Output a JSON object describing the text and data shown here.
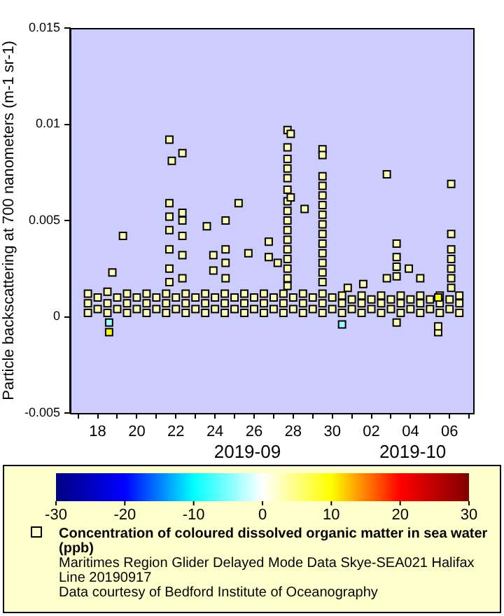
{
  "chart_data": {
    "type": "scatter",
    "title": "Maritimes Region Glider Delayed Mode Data Skye-SEA021 Halifax Line 20190917",
    "ylabel": "Particle backscattering at 700 nanometers (m-1 sr-1)",
    "clabel": "Concentration of coloured dissolved organic matter in sea water (ppb)",
    "annotations": [
      "2019-09",
      "2019-10",
      "Data courtesy of Bedford Institute of Oceanography"
    ],
    "xlim": [
      "2019-09-16T14:00",
      "2019-10-07T05:00"
    ],
    "xticks": [
      {
        "value": "2019-09-17",
        "label": null
      },
      {
        "value": "2019-09-18",
        "label": "18"
      },
      {
        "value": "2019-09-19",
        "label": null
      },
      {
        "value": "2019-09-20",
        "label": "20"
      },
      {
        "value": "2019-09-21",
        "label": null
      },
      {
        "value": "2019-09-22",
        "label": "22"
      },
      {
        "value": "2019-09-23",
        "label": null
      },
      {
        "value": "2019-09-24",
        "label": "24"
      },
      {
        "value": "2019-09-25",
        "label": null
      },
      {
        "value": "2019-09-26",
        "label": "26"
      },
      {
        "value": "2019-09-27",
        "label": null
      },
      {
        "value": "2019-09-28",
        "label": "28"
      },
      {
        "value": "2019-09-29",
        "label": null
      },
      {
        "value": "2019-09-30",
        "label": "30"
      },
      {
        "value": "2019-10-01",
        "label": null
      },
      {
        "value": "2019-10-02",
        "label": "02"
      },
      {
        "value": "2019-10-03",
        "label": null
      },
      {
        "value": "2019-10-04",
        "label": "04"
      },
      {
        "value": "2019-10-05",
        "label": null
      },
      {
        "value": "2019-10-06",
        "label": "06"
      },
      {
        "value": "2019-10-07",
        "label": null
      }
    ],
    "ylim": [
      -0.005,
      0.015
    ],
    "yticks": [
      -0.005,
      0,
      0.005,
      0.01,
      0.015
    ],
    "clim": [
      -30,
      30
    ],
    "cticks": [
      -30,
      -20,
      -10,
      0,
      10,
      20,
      30
    ],
    "marker": "square",
    "x": [
      "2019-09-17T12:00",
      "2019-09-17T12:00",
      "2019-09-17T12:00",
      "2019-09-18T12:00",
      "2019-09-18T12:00",
      "2019-09-18T12:00",
      "2019-09-19T12:00",
      "2019-09-19T12:00",
      "2019-09-19T12:00",
      "2019-09-20T12:00",
      "2019-09-20T12:00",
      "2019-09-20T12:00",
      "2019-09-21T12:00",
      "2019-09-21T12:00",
      "2019-09-21T12:00",
      "2019-09-22T12:00",
      "2019-09-22T12:00",
      "2019-09-22T12:00",
      "2019-09-23T12:00",
      "2019-09-23T12:00",
      "2019-09-23T12:00",
      "2019-09-24T12:00",
      "2019-09-24T12:00",
      "2019-09-24T12:00",
      "2019-09-25T12:00",
      "2019-09-25T12:00",
      "2019-09-25T12:00",
      "2019-09-26T12:00",
      "2019-09-26T12:00",
      "2019-09-26T12:00",
      "2019-09-27T12:00",
      "2019-09-27T12:00",
      "2019-09-27T12:00",
      "2019-09-28T12:00",
      "2019-09-28T12:00",
      "2019-09-28T12:00",
      "2019-09-29T12:00",
      "2019-09-29T12:00",
      "2019-09-29T12:00",
      "2019-09-30T12:00",
      "2019-09-30T12:00",
      "2019-09-30T12:00",
      "2019-10-01T12:00",
      "2019-10-01T12:00",
      "2019-10-01T12:00",
      "2019-10-02T12:00",
      "2019-10-02T12:00",
      "2019-10-02T12:00",
      "2019-10-03T12:00",
      "2019-10-03T12:00",
      "2019-10-03T12:00",
      "2019-10-04T12:00",
      "2019-10-04T12:00",
      "2019-10-04T12:00",
      "2019-10-05T12:00",
      "2019-10-05T12:00",
      "2019-10-05T12:00",
      "2019-10-06T12:00",
      "2019-10-06T12:00",
      "2019-10-06T12:00",
      "2019-09-18T00:00",
      "2019-09-18T00:00",
      "2019-09-19T00:00",
      "2019-09-19T00:00",
      "2019-09-20T00:00",
      "2019-09-20T00:00",
      "2019-09-21T00:00",
      "2019-09-21T00:00",
      "2019-09-22T00:00",
      "2019-09-22T00:00",
      "2019-09-23T00:00",
      "2019-09-23T00:00",
      "2019-09-24T00:00",
      "2019-09-24T00:00",
      "2019-09-25T00:00",
      "2019-09-25T00:00",
      "2019-09-26T00:00",
      "2019-09-26T00:00",
      "2019-09-27T00:00",
      "2019-09-27T00:00",
      "2019-09-28T00:00",
      "2019-09-28T00:00",
      "2019-09-29T00:00",
      "2019-09-29T00:00",
      "2019-09-30T00:00",
      "2019-09-30T00:00",
      "2019-10-01T00:00",
      "2019-10-01T00:00",
      "2019-10-02T00:00",
      "2019-10-02T00:00",
      "2019-10-03T00:00",
      "2019-10-03T00:00",
      "2019-10-04T00:00",
      "2019-10-04T00:00",
      "2019-10-05T00:00",
      "2019-10-05T00:00",
      "2019-10-06T00:00",
      "2019-10-06T00:00",
      "2019-09-21T16:00",
      "2019-09-21T19:00",
      "2019-09-21T16:00",
      "2019-09-21T16:00",
      "2019-09-21T16:00",
      "2019-09-21T16:00",
      "2019-09-21T16:00",
      "2019-09-21T16:00",
      "2019-09-22T08:00",
      "2019-09-22T08:00",
      "2019-09-22T08:00",
      "2019-09-22T08:00",
      "2019-09-22T08:00",
      "2019-09-22T08:00",
      "2019-09-19T07:00",
      "2019-09-18T18:00",
      "2019-09-18T14:00",
      "2019-09-18T14:00",
      "2019-09-23T14:00",
      "2019-09-23T22:00",
      "2019-09-23T22:00",
      "2019-09-24T13:00",
      "2019-09-24T13:00",
      "2019-09-24T13:00",
      "2019-09-24T13:00",
      "2019-09-25T05:00",
      "2019-09-25T17:00",
      "2019-09-26T18:00",
      "2019-09-26T18:00",
      "2019-09-27T05:00",
      "2019-09-27T17:00",
      "2019-09-27T17:00",
      "2019-09-27T17:00",
      "2019-09-27T17:00",
      "2019-09-27T17:00",
      "2019-09-27T17:00",
      "2019-09-27T17:00",
      "2019-09-27T17:00",
      "2019-09-27T17:00",
      "2019-09-27T17:00",
      "2019-09-27T17:00",
      "2019-09-27T17:00",
      "2019-09-27T17:00",
      "2019-09-27T17:00",
      "2019-09-27T17:00",
      "2019-09-27T17:00",
      "2019-09-27T21:00",
      "2019-09-27T21:00",
      "2019-09-28T14:00",
      "2019-09-29T12:00",
      "2019-09-29T12:00",
      "2019-09-29T12:00",
      "2019-09-29T12:00",
      "2019-09-29T12:00",
      "2019-09-29T12:00",
      "2019-09-29T12:00",
      "2019-09-29T12:00",
      "2019-09-29T12:00",
      "2019-09-29T12:00",
      "2019-09-29T12:00",
      "2019-09-29T12:00",
      "2019-09-29T12:00",
      "2019-09-29T12:00",
      "2019-09-30T12:00",
      "2019-09-30T19:00",
      "2019-10-01T14:00",
      "2019-10-02T19:00",
      "2019-10-02T19:00",
      "2019-10-03T07:00",
      "2019-10-03T07:00",
      "2019-10-03T07:00",
      "2019-10-03T07:00",
      "2019-10-03T07:00",
      "2019-10-03T22:00",
      "2019-10-04T12:00",
      "2019-10-05T10:00",
      "2019-10-05T10:00",
      "2019-10-05T10:00",
      "2019-10-06T02:00",
      "2019-10-06T02:00",
      "2019-10-06T02:00",
      "2019-10-06T02:00",
      "2019-10-06T02:00",
      "2019-10-06T02:00",
      "2019-10-06T02:00"
    ],
    "values": [
      0.0002,
      0.0007,
      0.0012,
      0.0002,
      0.0007,
      0.0013,
      0.0002,
      0.0007,
      0.0012,
      0.0002,
      0.0007,
      0.0012,
      0.0002,
      0.0007,
      0.0012,
      0.0002,
      0.0007,
      0.0012,
      0.0002,
      0.0007,
      0.0012,
      0.0002,
      0.0007,
      0.0012,
      0.0002,
      0.0007,
      0.0012,
      0.0002,
      0.0007,
      0.0012,
      0.0002,
      0.0007,
      0.0012,
      0.0002,
      0.0007,
      0.0012,
      0.0002,
      0.0007,
      0.0012,
      0.0002,
      0.0007,
      0.0011,
      0.0002,
      0.0007,
      0.0011,
      0.0002,
      0.0007,
      0.0011,
      0.0002,
      0.0007,
      0.0011,
      0.0002,
      0.0007,
      0.0011,
      0.0002,
      0.0007,
      0.0011,
      0.0002,
      0.0007,
      0.0011,
      0.0004,
      0.001,
      0.0004,
      0.001,
      0.0004,
      0.001,
      0.0004,
      0.001,
      0.0004,
      0.001,
      0.0004,
      0.001,
      0.0004,
      0.001,
      0.0004,
      0.001,
      0.0004,
      0.001,
      0.0004,
      0.001,
      0.0004,
      0.001,
      0.0004,
      0.001,
      0.0004,
      0.001,
      0.0004,
      0.0009,
      0.0004,
      0.0009,
      0.0004,
      0.0009,
      0.0004,
      0.0009,
      0.0004,
      0.0009,
      0.0004,
      0.0009,
      0.0092,
      0.0081,
      0.0059,
      0.0052,
      0.0045,
      0.0035,
      0.0025,
      0.0018,
      0.0085,
      0.0054,
      0.005,
      0.0042,
      0.0032,
      0.002,
      0.0042,
      0.0023,
      -0.0003,
      -0.0008,
      0.0047,
      0.0032,
      0.0024,
      0.005,
      0.0035,
      0.0028,
      0.002,
      0.0059,
      0.0033,
      0.0039,
      0.0031,
      0.0028,
      0.0097,
      0.0088,
      0.0082,
      0.0077,
      0.0072,
      0.0066,
      0.006,
      0.0055,
      0.005,
      0.0045,
      0.004,
      0.0035,
      0.003,
      0.0025,
      0.002,
      0.0016,
      0.0095,
      0.0062,
      0.0056,
      0.0087,
      0.0084,
      0.0073,
      0.0068,
      0.0063,
      0.0058,
      0.0053,
      0.0048,
      0.0043,
      0.0038,
      0.0033,
      0.0028,
      0.0023,
      0.0018,
      -0.0004,
      0.0015,
      0.0017,
      0.0074,
      0.002,
      0.0038,
      0.0031,
      0.0026,
      0.0021,
      -0.0003,
      0.0025,
      0.002,
      -0.0008,
      -0.0005,
      0.001,
      0.0069,
      0.0043,
      0.0035,
      0.003,
      0.0025,
      0.002,
      0.0015
    ],
    "cvalues": [
      3,
      3,
      3,
      3,
      3,
      3,
      3,
      3,
      3,
      3,
      3,
      3,
      3,
      3,
      3,
      3,
      3,
      3,
      3,
      3,
      3,
      3,
      3,
      3,
      3,
      3,
      3,
      3,
      3,
      3,
      3,
      3,
      3,
      3,
      3,
      3,
      3,
      3,
      3,
      3,
      3,
      3,
      3,
      3,
      3,
      3,
      3,
      3,
      3,
      3,
      3,
      3,
      3,
      3,
      3,
      3,
      3,
      3,
      3,
      3,
      3,
      3,
      3,
      3,
      3,
      3,
      3,
      3,
      3,
      3,
      3,
      3,
      3,
      3,
      3,
      3,
      3,
      3,
      3,
      3,
      3,
      3,
      3,
      3,
      3,
      3,
      3,
      3,
      3,
      3,
      3,
      3,
      3,
      3,
      3,
      3,
      3,
      3,
      3,
      3,
      3,
      3,
      3,
      3,
      3,
      3,
      3,
      3,
      3,
      3,
      3,
      3,
      3,
      3,
      -4,
      10,
      3,
      3,
      3,
      3,
      3,
      3,
      3,
      3,
      3,
      3,
      3,
      3,
      3,
      3,
      3,
      3,
      3,
      3,
      3,
      3,
      3,
      3,
      3,
      3,
      3,
      3,
      3,
      3,
      3,
      3,
      3,
      3,
      3,
      3,
      3,
      3,
      3,
      3,
      3,
      3,
      3,
      3,
      3,
      3,
      3,
      -4,
      3,
      3,
      3,
      3,
      3,
      3,
      3,
      3,
      3,
      3,
      3,
      3,
      3,
      10,
      3,
      3,
      3,
      3,
      3,
      3,
      3
    ]
  }
}
